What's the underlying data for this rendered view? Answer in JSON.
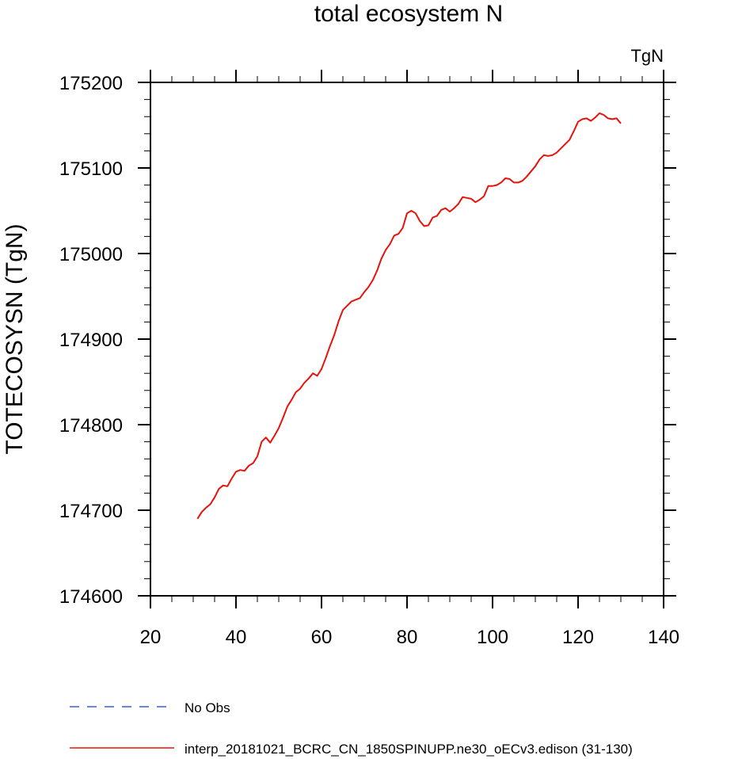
{
  "chart_data": {
    "type": "line",
    "title": "total ecosystem N",
    "units": "TgN",
    "ylabel": "TOTECOSYSN  (TgN)",
    "xlabel": "",
    "xlim": [
      20,
      140
    ],
    "ylim": [
      174600,
      175200
    ],
    "xticks": [
      20,
      40,
      60,
      80,
      100,
      120,
      140
    ],
    "yticks": [
      174600,
      174700,
      174800,
      174900,
      175000,
      175100,
      175200
    ],
    "legend": [
      {
        "label": "No Obs",
        "color": "#3a5fd9",
        "style": "dashed"
      },
      {
        "label": "interp_20181021_BCRC_CN_1850SPINUPP.ne30_oECv3.edison (31-130)",
        "color": "#e8120c",
        "style": "solid"
      }
    ],
    "series": [
      {
        "name": "interp_20181021_BCRC_CN_1850SPINUPP.ne30_oECv3.edison (31-130)",
        "color": "#e8120c",
        "x": [
          31,
          32,
          33,
          34,
          35,
          36,
          37,
          38,
          39,
          40,
          41,
          42,
          43,
          44,
          45,
          46,
          47,
          48,
          49,
          50,
          51,
          52,
          53,
          54,
          55,
          56,
          57,
          58,
          59,
          60,
          61,
          62,
          63,
          64,
          65,
          66,
          67,
          68,
          69,
          70,
          71,
          72,
          73,
          74,
          75,
          76,
          77,
          78,
          79,
          80,
          81,
          82,
          83,
          84,
          85,
          86,
          87,
          88,
          89,
          90,
          91,
          92,
          93,
          94,
          95,
          96,
          97,
          98,
          99,
          100,
          101,
          102,
          103,
          104,
          105,
          106,
          107,
          108,
          109,
          110,
          111,
          112,
          113,
          114,
          115,
          116,
          117,
          118,
          119,
          120,
          121,
          122,
          123,
          124,
          125,
          126,
          127,
          128,
          129,
          130
        ],
        "y": [
          174690,
          174698,
          174703,
          174707,
          174715,
          174725,
          174729,
          174728,
          174737,
          174745,
          174747,
          174746,
          174752,
          174755,
          174763,
          174780,
          174785,
          174779,
          174787,
          174796,
          174808,
          174821,
          174829,
          174838,
          174842,
          174849,
          174854,
          174860,
          174857,
          174865,
          174878,
          174892,
          174905,
          174921,
          174934,
          174939,
          174944,
          174946,
          174948,
          174955,
          174961,
          174969,
          174980,
          174994,
          175004,
          175011,
          175021,
          175023,
          175030,
          175047,
          175050,
          175047,
          175038,
          175032,
          175033,
          175042,
          175044,
          175051,
          175053,
          175049,
          175053,
          175058,
          175066,
          175065,
          175064,
          175060,
          175063,
          175067,
          175079,
          175079,
          175080,
          175083,
          175088,
          175087,
          175083,
          175083,
          175085,
          175090,
          175096,
          175102,
          175110,
          175115,
          175114,
          175115,
          175118,
          175123,
          175128,
          175133,
          175143,
          175154,
          175157,
          175158,
          175155,
          175159,
          175164,
          175162,
          175158,
          175157,
          175158,
          175152
        ]
      }
    ]
  }
}
